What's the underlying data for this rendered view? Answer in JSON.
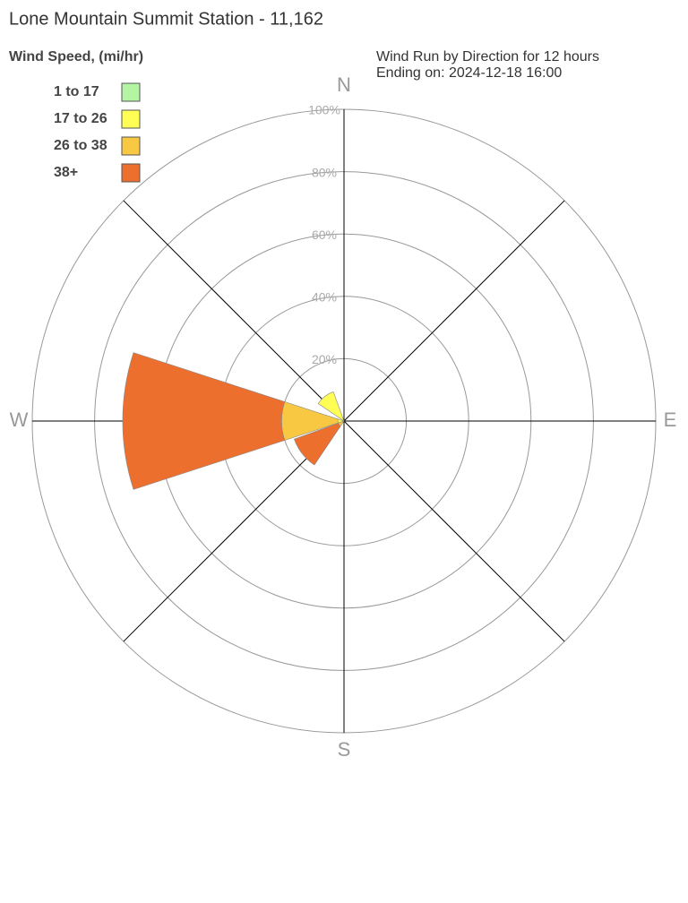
{
  "chart_data": {
    "type": "windrose",
    "title": "Lone Mountain Summit Station - 11,162",
    "legend_title": "Wind Speed, (mi/hr)",
    "subtitle": [
      "Wind Run by Direction for 12 hours",
      "Ending on: 2024-12-18 16:00"
    ],
    "compass": [
      "N",
      "E",
      "S",
      "W"
    ],
    "directions": [
      270,
      322,
      232
    ],
    "series": [
      {
        "name": "1 to 17",
        "color": "#b3f5a3",
        "values": [
          0,
          0,
          0
        ]
      },
      {
        "name": "17 to 26",
        "color": "#fefe55",
        "values": [
          2,
          10,
          0
        ]
      },
      {
        "name": "26 to 38",
        "color": "#f8c843",
        "values": [
          18,
          0,
          2
        ]
      },
      {
        "name": "38+",
        "color": "#ec6f2d",
        "values": [
          51,
          0,
          15
        ]
      }
    ],
    "rlim": [
      0,
      100
    ],
    "rticks": [
      {
        "value": 20,
        "label": "20%"
      },
      {
        "value": 40,
        "label": "40%"
      },
      {
        "value": 60,
        "label": "60%"
      },
      {
        "value": 80,
        "label": "80%"
      },
      {
        "value": 100,
        "label": "100%"
      }
    ]
  }
}
